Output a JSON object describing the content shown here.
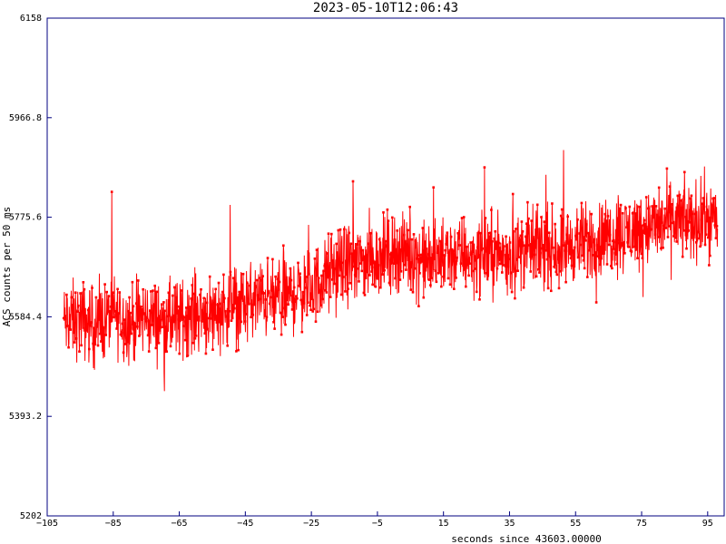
{
  "chart_data": {
    "type": "line",
    "title": "2023-05-10T12:06:43",
    "xlabel": "seconds since 43603.00000",
    "ylabel": "ACS counts per 50 ms",
    "xlim": [
      -105,
      100
    ],
    "ylim": [
      5202,
      6158
    ],
    "x_ticks": [
      -105,
      -85,
      -65,
      -45,
      -25,
      -5,
      15,
      35,
      55,
      75,
      95
    ],
    "y_ticks": [
      5202,
      5393.2,
      5584.4,
      5775.6,
      5966.8,
      6158
    ],
    "x_tick_labels": [
      "−105",
      "−85",
      "−65",
      "−45",
      "−25",
      "−5",
      "15",
      "35",
      "55",
      "75",
      "95"
    ],
    "y_tick_labels": [
      "5202",
      "5393.2",
      "5584.4",
      "5775.6",
      "5966.8",
      "6158"
    ],
    "grid": false,
    "series": [
      {
        "color": "#ff0000",
        "marker": "square",
        "x": [
          -100,
          -95,
          -90,
          -85,
          -80,
          -75,
          -70,
          -65,
          -60,
          -55,
          -50,
          -45,
          -40,
          -35,
          -30,
          -25,
          -20,
          -15,
          -10,
          -5,
          0,
          5,
          10,
          15,
          20,
          25,
          30,
          35,
          40,
          45,
          50,
          55,
          60,
          65,
          70,
          75,
          80,
          85,
          90,
          95,
          98
        ],
        "y": [
          5575,
          5580,
          5565,
          5590,
          5570,
          5585,
          5575,
          5580,
          5595,
          5590,
          5605,
          5610,
          5620,
          5615,
          5630,
          5640,
          5665,
          5685,
          5690,
          5700,
          5710,
          5705,
          5690,
          5700,
          5705,
          5700,
          5710,
          5700,
          5715,
          5720,
          5715,
          5725,
          5730,
          5740,
          5745,
          5755,
          5760,
          5770,
          5765,
          5775,
          5770
        ],
        "noise_amplitude": 110
      }
    ]
  }
}
